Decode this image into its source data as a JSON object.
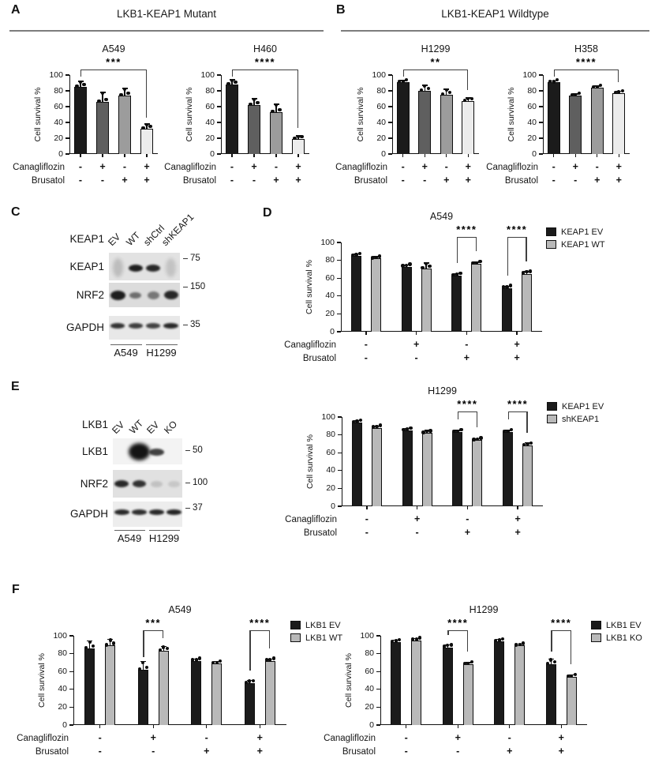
{
  "figure": {
    "panels": [
      {
        "letter": "A",
        "header": "LKB1-KEAP1 Mutant"
      },
      {
        "letter": "B",
        "header": "LKB1-KEAP1 Wildtype"
      },
      {
        "letter": "C"
      },
      {
        "letter": "D"
      },
      {
        "letter": "E"
      },
      {
        "letter": "F"
      }
    ]
  },
  "shared": {
    "ylabel": "Cell survival %",
    "yticks": [
      0,
      20,
      40,
      60,
      80,
      100
    ],
    "treatments": [
      "Canagliflozin",
      "Brusatol"
    ],
    "single_bar_colors": [
      "#1b1b1b",
      "#5f5f5f",
      "#9c9c9c",
      "#ececec"
    ],
    "series_black": "#1b1b1b",
    "series_gray": "#b9b9b9"
  },
  "chart_data": [
    {
      "id": "chart-a-a549",
      "panel": "A",
      "type": "bar",
      "title": "A549",
      "ylabel": "Cell survival %",
      "ylim": [
        0,
        100
      ],
      "values": [
        85,
        66,
        74,
        32
      ],
      "errors": [
        7,
        12,
        9,
        6
      ],
      "treatment_rows": [
        {
          "label": "Canagliflozin",
          "signs": [
            "-",
            "+",
            "-",
            "+"
          ]
        },
        {
          "label": "Brusatol",
          "signs": [
            "-",
            "-",
            "+",
            "+"
          ]
        }
      ],
      "significance": [
        {
          "from": 0,
          "to": 3,
          "label": "***"
        }
      ]
    },
    {
      "id": "chart-a-h460",
      "panel": "A",
      "type": "bar",
      "title": "H460",
      "ylabel": "Cell survival %",
      "ylim": [
        0,
        100
      ],
      "values": [
        88,
        62,
        53,
        19
      ],
      "errors": [
        6,
        8,
        10,
        4
      ],
      "treatment_rows": [
        {
          "label": "Canagliflozin",
          "signs": [
            "-",
            "+",
            "-",
            "+"
          ]
        },
        {
          "label": "Brusatol",
          "signs": [
            "-",
            "-",
            "+",
            "+"
          ]
        }
      ],
      "significance": [
        {
          "from": 0,
          "to": 3,
          "label": "****"
        }
      ]
    },
    {
      "id": "chart-b-h1299",
      "panel": "B",
      "type": "bar",
      "title": "H1299",
      "ylabel": "Cell survival %",
      "ylim": [
        0,
        100
      ],
      "values": [
        91,
        80,
        75,
        67
      ],
      "errors": [
        2,
        7,
        7,
        4
      ],
      "treatment_rows": [
        {
          "label": "Canagliflozin",
          "signs": [
            "-",
            "+",
            "-",
            "+"
          ]
        },
        {
          "label": "Brusatol",
          "signs": [
            "-",
            "-",
            "+",
            "+"
          ]
        }
      ],
      "significance": [
        {
          "from": 0,
          "to": 3,
          "label": "**"
        }
      ]
    },
    {
      "id": "chart-b-h358",
      "panel": "B",
      "type": "bar",
      "title": "H358",
      "ylabel": "Cell survival %",
      "ylim": [
        0,
        100
      ],
      "values": [
        91,
        74,
        84,
        77
      ],
      "errors": [
        1.5,
        2,
        2,
        2.5
      ],
      "treatment_rows": [
        {
          "label": "Canagliflozin",
          "signs": [
            "-",
            "+",
            "-",
            "+"
          ]
        },
        {
          "label": "Brusatol",
          "signs": [
            "-",
            "-",
            "+",
            "+"
          ]
        }
      ],
      "significance": [
        {
          "from": 0,
          "to": 3,
          "label": "****"
        }
      ]
    },
    {
      "id": "chart-d-a549",
      "panel": "D",
      "type": "grouped-bar",
      "title": "A549",
      "ylabel": "Cell survival %",
      "ylim": [
        0,
        100
      ],
      "series": [
        {
          "name": "KEAP1 EV",
          "color": "#1b1b1b",
          "values": [
            85,
            73,
            63,
            49
          ],
          "errors": [
            2,
            2,
            2,
            2
          ]
        },
        {
          "name": "KEAP1 WT",
          "color": "#b9b9b9",
          "values": [
            82,
            71,
            76,
            65
          ],
          "errors": [
            2,
            6,
            2,
            3
          ]
        }
      ],
      "treatment_rows": [
        {
          "label": "Canagliflozin",
          "signs": [
            "-",
            "+",
            "-",
            "+"
          ]
        },
        {
          "label": "Brusatol",
          "signs": [
            "-",
            "-",
            "+",
            "+"
          ]
        }
      ],
      "significance": [
        {
          "group": 2,
          "label": "****"
        },
        {
          "group": 3,
          "label": "****"
        }
      ]
    },
    {
      "id": "chart-e-h1299",
      "panel": "E",
      "type": "grouped-bar",
      "title": "H1299",
      "ylabel": "Cell survival %",
      "ylim": [
        0,
        100
      ],
      "series": [
        {
          "name": "KEAP1 EV",
          "color": "#1b1b1b",
          "values": [
            94,
            85,
            83,
            83
          ],
          "errors": [
            2,
            2,
            2,
            2
          ]
        },
        {
          "name": "shKEAP1",
          "color": "#b9b9b9",
          "values": [
            88,
            82,
            74,
            68
          ],
          "errors": [
            2,
            3,
            2,
            3
          ]
        }
      ],
      "treatment_rows": [
        {
          "label": "Canagliflozin",
          "signs": [
            "-",
            "+",
            "-",
            "+"
          ]
        },
        {
          "label": "Brusatol",
          "signs": [
            "-",
            "-",
            "+",
            "+"
          ]
        }
      ],
      "significance": [
        {
          "group": 2,
          "label": "****"
        },
        {
          "group": 3,
          "label": "****"
        }
      ]
    },
    {
      "id": "chart-f-a549",
      "panel": "F",
      "type": "grouped-bar",
      "title": "A549",
      "ylabel": "Cell survival %",
      "ylim": [
        0,
        100
      ],
      "series": [
        {
          "name": "LKB1 EV",
          "color": "#1b1b1b",
          "values": [
            86,
            62,
            72,
            47
          ],
          "errors": [
            8,
            9,
            2,
            3
          ]
        },
        {
          "name": "LKB1 WT",
          "color": "#b9b9b9",
          "values": [
            89,
            83,
            69,
            72
          ],
          "errors": [
            7,
            5,
            2,
            2
          ]
        }
      ],
      "treatment_rows": [
        {
          "label": "Canagliflozin",
          "signs": [
            "-",
            "+",
            "-",
            "+"
          ]
        },
        {
          "label": "Brusatol",
          "signs": [
            "-",
            "-",
            "+",
            "+"
          ]
        }
      ],
      "significance": [
        {
          "group": 1,
          "label": "***"
        },
        {
          "group": 3,
          "label": "****"
        }
      ]
    },
    {
      "id": "chart-f-h1299",
      "panel": "F",
      "type": "grouped-bar",
      "title": "H1299",
      "ylabel": "Cell survival %",
      "ylim": [
        0,
        100
      ],
      "series": [
        {
          "name": "LKB1 EV",
          "color": "#1b1b1b",
          "values": [
            93,
            87,
            94,
            68
          ],
          "errors": [
            2,
            3,
            2,
            6
          ]
        },
        {
          "name": "LKB1 KO",
          "color": "#b9b9b9",
          "values": [
            95,
            68,
            89,
            54
          ],
          "errors": [
            2,
            2,
            2,
            2
          ]
        }
      ],
      "treatment_rows": [
        {
          "label": "Canagliflozin",
          "signs": [
            "-",
            "+",
            "-",
            "+"
          ]
        },
        {
          "label": "Brusatol",
          "signs": [
            "-",
            "-",
            "+",
            "+"
          ]
        }
      ],
      "significance": [
        {
          "group": 1,
          "label": "****"
        },
        {
          "group": 3,
          "label": "****"
        }
      ]
    }
  ],
  "blot_data": [
    {
      "id": "blot-c",
      "panel": "C",
      "gene": "KEAP1",
      "lanes": [
        "EV",
        "WT",
        "shCtrl",
        "shKEAP1"
      ],
      "rows": [
        {
          "label": "KEAP1",
          "marker": "75",
          "bands": [
            0.18,
            0.95,
            0.9,
            0.15
          ]
        },
        {
          "label": "NRF2",
          "marker": "150",
          "bands": [
            0.95,
            0.55,
            0.5,
            0.9
          ]
        },
        {
          "label": "GAPDH",
          "marker": "35",
          "bands": [
            0.85,
            0.8,
            0.78,
            0.9
          ]
        }
      ],
      "cell_lines": [
        "A549",
        "H1299"
      ]
    },
    {
      "id": "blot-e",
      "panel": "E",
      "gene": "LKB1",
      "lanes": [
        "EV",
        "WT",
        "EV",
        "KO"
      ],
      "rows": [
        {
          "label": "LKB1",
          "marker": "50",
          "bands": [
            0,
            1,
            0.8,
            0
          ]
        },
        {
          "label": "NRF2",
          "marker": "100",
          "bands": [
            0.9,
            0.85,
            0.15,
            0.12
          ]
        },
        {
          "label": "GAPDH",
          "marker": "37",
          "bands": [
            0.9,
            0.88,
            0.9,
            0.92
          ]
        }
      ],
      "cell_lines": [
        "A549",
        "H1299"
      ]
    }
  ]
}
